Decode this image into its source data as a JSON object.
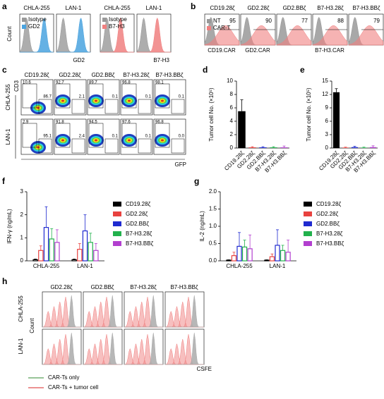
{
  "panel_a": {
    "letter": "a",
    "cells": [
      "CHLA-255",
      "LAN-1",
      "CHLA-255",
      "LAN-1"
    ],
    "legend_left": [
      "Isotype",
      "GD2"
    ],
    "legend_right": [
      "Isotype",
      "B7-H3"
    ],
    "ylabel": "Count",
    "xlabels": [
      "GD2",
      "B7-H3"
    ]
  },
  "panel_b": {
    "letter": "b",
    "cars": [
      "CD19.28ζ",
      "GD2.28ζ",
      "GD2.BBζ",
      "B7-H3.28ζ",
      "B7-H3.BBζ"
    ],
    "percents": [
      95,
      90,
      77,
      88,
      79
    ],
    "legend": [
      "NT",
      "CAR-T"
    ],
    "xlabels": [
      "CD19.CAR",
      "GD2.CAR",
      "B7-H3.CAR"
    ]
  },
  "panel_c": {
    "letter": "c",
    "cars": [
      "CD19.28ζ",
      "GD2.28ζ",
      "GD2.BBζ",
      "B7-H3.28ζ",
      "B7-H3.BBζ"
    ],
    "rows": [
      "CHLA-255",
      "LAN-1"
    ],
    "ylabel": "CD3",
    "xlabel": "GFP",
    "upper_left": [
      [
        10.6,
        92.7,
        89.7,
        96.8,
        98.1
      ],
      [
        2.9,
        91.8,
        94.5,
        97.6,
        96.8
      ]
    ],
    "lower_right": [
      [
        86.7,
        2.1,
        0.1,
        0.1,
        0.1
      ],
      [
        95.1,
        2.4,
        0.1,
        0.1,
        {
          "value": 0,
          "label": "0.0"
        }
      ]
    ]
  },
  "chart_data": [
    {
      "type": "bar",
      "letter": "d",
      "ylabel": "Tumor cell No. (×10⁵)",
      "categories": [
        "CD19.28ζ",
        "GD2.28ζ",
        "GD2.BBζ",
        "B7-H3.28ζ",
        "B7-H3.BBζ"
      ],
      "values": [
        5.5,
        0.1,
        0.1,
        0.1,
        0.1
      ],
      "errors": [
        1.7,
        0.1,
        0.1,
        0.1,
        0.2
      ],
      "colors": [
        "#000000",
        "#e8423f",
        "#1f2ad0",
        "#22b14c",
        "#b23fcf"
      ],
      "ylim": [
        0,
        10
      ],
      "yticks": [
        0,
        2,
        4,
        6,
        8,
        10
      ]
    },
    {
      "type": "bar",
      "letter": "e",
      "ylabel": "Tumor cell No. (×10⁵)",
      "categories": [
        "CD19.28ζ",
        "GD2.28ζ",
        "GD2.BBζ",
        "B7-H3.28ζ",
        "B7-H3.BBζ"
      ],
      "values": [
        12.5,
        0.1,
        0.2,
        0.1,
        0.2
      ],
      "errors": [
        0.8,
        0.1,
        0.2,
        0.1,
        0.3
      ],
      "colors": [
        "#000000",
        "#e8423f",
        "#1f2ad0",
        "#22b14c",
        "#b23fcf"
      ],
      "ylim": [
        0,
        15
      ],
      "yticks": [
        0,
        3,
        6,
        9,
        12,
        15
      ]
    },
    {
      "type": "grouped_bar",
      "letter": "f",
      "ylabel": "IFN-γ (ng/mL)",
      "categories": [
        "CHLA-255",
        "LAN-1"
      ],
      "series": [
        {
          "name": "CD19.28ζ",
          "color": "#000000",
          "values": [
            0.05,
            0.05
          ],
          "errors": [
            0.03,
            0.03
          ]
        },
        {
          "name": "GD2.28ζ",
          "color": "#e8423f",
          "values": [
            0.45,
            0.5
          ],
          "errors": [
            0.2,
            0.25
          ]
        },
        {
          "name": "GD2.BBζ",
          "color": "#1f2ad0",
          "values": [
            1.45,
            1.3
          ],
          "errors": [
            0.9,
            0.7
          ]
        },
        {
          "name": "B7-H3.28ζ",
          "color": "#22b14c",
          "values": [
            0.95,
            0.8
          ],
          "errors": [
            0.45,
            0.4
          ]
        },
        {
          "name": "B7-H3.BBζ",
          "color": "#b23fcf",
          "values": [
            0.8,
            0.45
          ],
          "errors": [
            0.55,
            0.3
          ]
        }
      ],
      "ylim": [
        0,
        3
      ],
      "yticks": [
        0,
        1,
        2,
        3
      ]
    },
    {
      "type": "grouped_bar",
      "letter": "g",
      "ylabel": "IL-2 (ng/mL)",
      "categories": [
        "CHLA-255",
        "LAN-1"
      ],
      "series": [
        {
          "name": "CD19.28ζ",
          "color": "#000000",
          "values": [
            0.02,
            0.02
          ],
          "errors": [
            0.01,
            0.01
          ]
        },
        {
          "name": "GD2.28ζ",
          "color": "#e8423f",
          "values": [
            0.15,
            0.12
          ],
          "errors": [
            0.1,
            0.08
          ]
        },
        {
          "name": "GD2.BBζ",
          "color": "#1f2ad0",
          "values": [
            0.42,
            0.45
          ],
          "errors": [
            0.4,
            0.45
          ]
        },
        {
          "name": "B7-H3.28ζ",
          "color": "#22b14c",
          "values": [
            0.4,
            0.3
          ],
          "errors": [
            0.2,
            0.15
          ]
        },
        {
          "name": "B7-H3.BBζ",
          "color": "#b23fcf",
          "values": [
            0.35,
            0.25
          ],
          "errors": [
            0.4,
            0.35
          ]
        }
      ],
      "ylim": [
        0,
        2
      ],
      "yticks": [
        {
          "value": 0,
          "label": "0.0"
        },
        0.5,
        {
          "value": 1,
          "label": "1.0"
        },
        1.5,
        {
          "value": 2,
          "label": "2.0"
        }
      ]
    }
  ],
  "panel_h": {
    "letter": "h",
    "cars": [
      "GD2.28ζ",
      "GD2.BBζ",
      "B7-H3.28ζ",
      "B7-H3.BBζ"
    ],
    "rows": [
      "CHLA-255",
      "LAN-1"
    ],
    "ylabel": "Count",
    "xlabel": "CSFE",
    "legend": [
      "CAR-Ts only",
      "CAR-Ts + tumor cell"
    ]
  }
}
